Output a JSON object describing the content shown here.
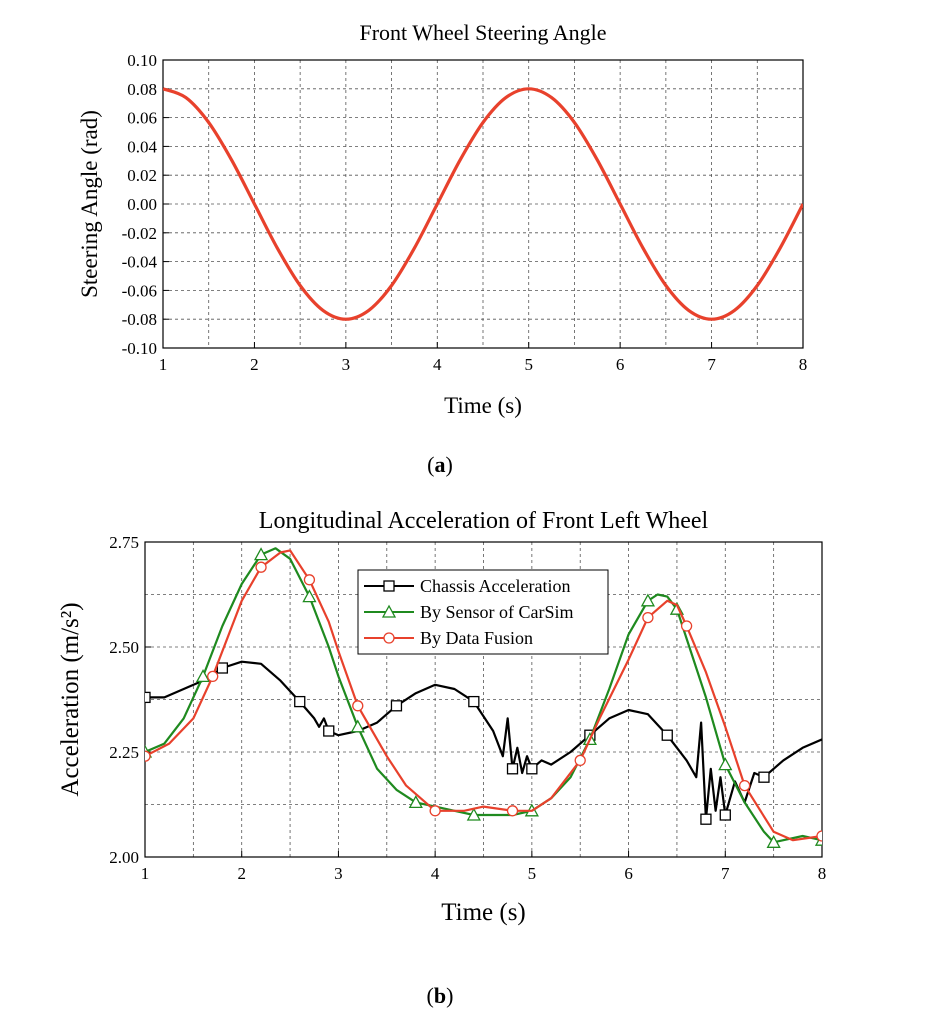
{
  "chart_data": [
    {
      "type": "line",
      "title": "Front Wheel Steering Angle",
      "xlabel": "Time (s)",
      "ylabel": "Steering Angle (rad)",
      "xlim": [
        1,
        8
      ],
      "ylim": [
        -0.1,
        0.1
      ],
      "xticks": [
        "1",
        "2",
        "3",
        "4",
        "5",
        "6",
        "7",
        "8"
      ],
      "yticks": [
        "-0.10",
        "-0.08",
        "-0.06",
        "-0.04",
        "-0.02",
        "0.00",
        "0.02",
        "0.04",
        "0.06",
        "0.08",
        "0.10"
      ],
      "grid": true,
      "series": [
        {
          "color": "#e8412c",
          "x": [
            1.0,
            1.25,
            1.5,
            1.75,
            2.0,
            2.25,
            2.5,
            2.75,
            3.0,
            3.25,
            3.5,
            3.75,
            4.0,
            4.25,
            4.5,
            4.75,
            5.0,
            5.25,
            5.5,
            5.75,
            6.0,
            6.25,
            6.5,
            6.75,
            7.0,
            7.25,
            7.5,
            7.75,
            8.0
          ],
          "values": [
            0.08,
            0.0739,
            0.0566,
            0.0306,
            0.0,
            -0.0306,
            -0.0566,
            -0.0739,
            -0.08,
            -0.0739,
            -0.0566,
            -0.0306,
            0.0,
            0.0306,
            0.0566,
            0.0739,
            0.08,
            0.0739,
            0.0566,
            0.0306,
            0.0,
            -0.0306,
            -0.0566,
            -0.0739,
            -0.08,
            -0.0739,
            -0.0566,
            -0.0306,
            0.0
          ]
        }
      ],
      "caption": "a"
    },
    {
      "type": "line",
      "title": "Longitudinal Acceleration of Front Left Wheel",
      "xlabel": "Time (s)",
      "ylabel": "Acceleration (m/s²)",
      "xlim": [
        1,
        8
      ],
      "ylim": [
        2.0,
        2.75
      ],
      "xticks": [
        "1",
        "2",
        "3",
        "4",
        "5",
        "6",
        "7",
        "8"
      ],
      "yticks": [
        "2.00",
        "2.25",
        "2.50",
        "2.75"
      ],
      "grid": true,
      "legend": "top-center",
      "series": [
        {
          "name": "Chassis Acceleration",
          "color": "#000000",
          "marker": "square",
          "x": [
            1.0,
            1.2,
            1.4,
            1.6,
            1.8,
            2.0,
            2.2,
            2.4,
            2.6,
            2.75,
            2.8,
            2.85,
            2.9,
            3.0,
            3.2,
            3.4,
            3.6,
            3.8,
            4.0,
            4.2,
            4.4,
            4.6,
            4.7,
            4.75,
            4.8,
            4.85,
            4.9,
            4.95,
            5.0,
            5.1,
            5.2,
            5.4,
            5.6,
            5.8,
            6.0,
            6.2,
            6.4,
            6.6,
            6.7,
            6.75,
            6.8,
            6.85,
            6.9,
            6.95,
            7.0,
            7.1,
            7.2,
            7.3,
            7.4,
            7.6,
            7.8,
            8.0
          ],
          "values": [
            2.38,
            2.38,
            2.4,
            2.42,
            2.45,
            2.465,
            2.46,
            2.42,
            2.37,
            2.33,
            2.31,
            2.33,
            2.3,
            2.29,
            2.3,
            2.32,
            2.36,
            2.39,
            2.41,
            2.4,
            2.37,
            2.3,
            2.24,
            2.33,
            2.21,
            2.26,
            2.2,
            2.24,
            2.21,
            2.23,
            2.22,
            2.25,
            2.29,
            2.33,
            2.35,
            2.34,
            2.29,
            2.23,
            2.19,
            2.32,
            2.09,
            2.21,
            2.11,
            2.19,
            2.1,
            2.18,
            2.13,
            2.2,
            2.19,
            2.23,
            2.26,
            2.28
          ]
        },
        {
          "name": "By Sensor of CarSim",
          "color": "#1f8a1f",
          "marker": "triangle",
          "x": [
            1.0,
            1.2,
            1.4,
            1.6,
            1.8,
            2.0,
            2.2,
            2.35,
            2.5,
            2.7,
            2.9,
            3.0,
            3.2,
            3.4,
            3.6,
            3.8,
            4.0,
            4.2,
            4.4,
            4.6,
            4.8,
            5.0,
            5.2,
            5.4,
            5.6,
            5.8,
            6.0,
            6.2,
            6.3,
            6.4,
            6.5,
            6.6,
            6.8,
            7.0,
            7.2,
            7.4,
            7.5,
            7.6,
            7.8,
            8.0
          ],
          "values": [
            2.25,
            2.27,
            2.33,
            2.43,
            2.55,
            2.65,
            2.72,
            2.735,
            2.71,
            2.62,
            2.5,
            2.43,
            2.31,
            2.21,
            2.16,
            2.13,
            2.12,
            2.11,
            2.1,
            2.1,
            2.1,
            2.11,
            2.14,
            2.19,
            2.28,
            2.4,
            2.53,
            2.61,
            2.625,
            2.62,
            2.59,
            2.52,
            2.38,
            2.22,
            2.13,
            2.06,
            2.035,
            2.04,
            2.05,
            2.04
          ]
        },
        {
          "name": "By Data Fusion",
          "color": "#e8412c",
          "marker": "circle",
          "x": [
            1.0,
            1.25,
            1.5,
            1.7,
            1.9,
            2.0,
            2.2,
            2.4,
            2.5,
            2.7,
            2.9,
            3.0,
            3.2,
            3.5,
            3.7,
            4.0,
            4.3,
            4.5,
            4.8,
            5.0,
            5.2,
            5.5,
            5.7,
            6.0,
            6.2,
            6.4,
            6.5,
            6.6,
            6.8,
            7.0,
            7.2,
            7.5,
            7.7,
            8.0
          ],
          "values": [
            2.24,
            2.27,
            2.33,
            2.43,
            2.55,
            2.61,
            2.69,
            2.725,
            2.73,
            2.66,
            2.56,
            2.49,
            2.36,
            2.24,
            2.17,
            2.11,
            2.11,
            2.12,
            2.11,
            2.11,
            2.14,
            2.23,
            2.33,
            2.47,
            2.57,
            2.61,
            2.6,
            2.55,
            2.44,
            2.31,
            2.17,
            2.06,
            2.04,
            2.05
          ]
        }
      ],
      "caption": "b"
    }
  ]
}
